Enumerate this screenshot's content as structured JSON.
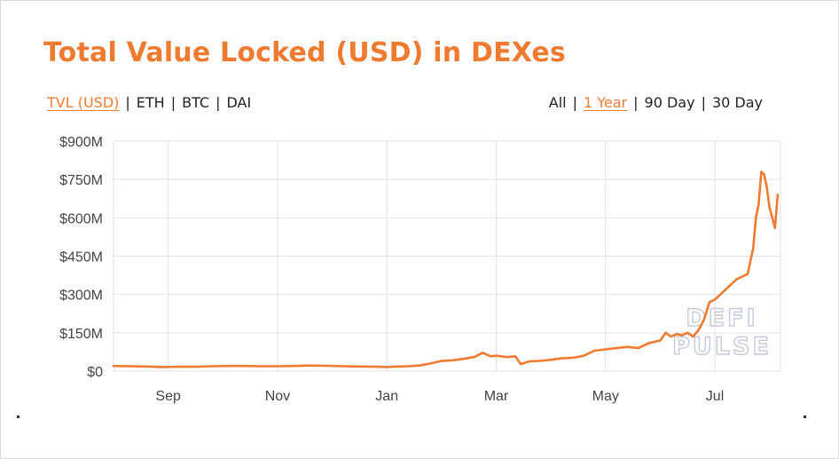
{
  "header": {
    "title": "Total Value Locked (USD) in DEXes"
  },
  "currency_toggle": {
    "options": [
      "TVL (USD)",
      "ETH",
      "BTC",
      "DAI"
    ],
    "active": "TVL (USD)"
  },
  "range_toggle": {
    "options": [
      "All",
      "1 Year",
      "90 Day",
      "30 Day"
    ],
    "active": "1 Year"
  },
  "watermark": {
    "line1": "DEFI",
    "line2": "PULSE"
  },
  "colors": {
    "accent": "#f07a30",
    "grid": "#e2e2e2",
    "axis_text": "#444444"
  },
  "chart_data": {
    "type": "line",
    "title": "Total Value Locked (USD) in DEXes",
    "xlabel": "",
    "ylabel": "",
    "ylim": [
      0,
      900
    ],
    "y_ticks": [
      0,
      150,
      300,
      450,
      600,
      750,
      900
    ],
    "y_tick_labels": [
      "$0",
      "$150M",
      "$300M",
      "$450M",
      "$600M",
      "$750M",
      "$900M"
    ],
    "x_range": [
      0,
      12.2
    ],
    "x_ticks": [
      1,
      3,
      5,
      7,
      9,
      11
    ],
    "x_tick_labels": [
      "Sep",
      "Nov",
      "Jan",
      "Mar",
      "May",
      "Jul"
    ],
    "grid": true,
    "legend": "none",
    "series": [
      {
        "color": "#f07a30",
        "x": [
          0.0,
          0.3,
          0.6,
          0.9,
          1.2,
          1.5,
          1.8,
          2.1,
          2.4,
          2.7,
          3.0,
          3.3,
          3.6,
          3.9,
          4.2,
          4.5,
          4.8,
          5.0,
          5.2,
          5.4,
          5.6,
          5.8,
          6.0,
          6.2,
          6.4,
          6.6,
          6.75,
          6.9,
          7.0,
          7.2,
          7.35,
          7.45,
          7.6,
          7.8,
          8.0,
          8.2,
          8.4,
          8.6,
          8.8,
          9.0,
          9.2,
          9.4,
          9.6,
          9.8,
          10.0,
          10.1,
          10.2,
          10.3,
          10.4,
          10.5,
          10.6,
          10.7,
          10.8,
          10.9,
          11.0,
          11.1,
          11.2,
          11.3,
          11.4,
          11.5,
          11.6,
          11.7,
          11.75,
          11.8,
          11.85,
          11.9,
          11.95,
          12.0,
          12.05,
          12.1,
          12.15
        ],
        "y": [
          20,
          19,
          18,
          16,
          17,
          17,
          19,
          20,
          20,
          19,
          19,
          20,
          22,
          21,
          19,
          18,
          17,
          16,
          18,
          19,
          22,
          30,
          40,
          42,
          48,
          55,
          72,
          58,
          60,
          55,
          58,
          27,
          38,
          40,
          44,
          50,
          52,
          60,
          80,
          85,
          90,
          95,
          90,
          110,
          120,
          150,
          135,
          145,
          140,
          150,
          135,
          160,
          200,
          270,
          280,
          300,
          320,
          340,
          360,
          370,
          380,
          480,
          600,
          650,
          780,
          770,
          720,
          640,
          600,
          560,
          690
        ]
      }
    ]
  }
}
